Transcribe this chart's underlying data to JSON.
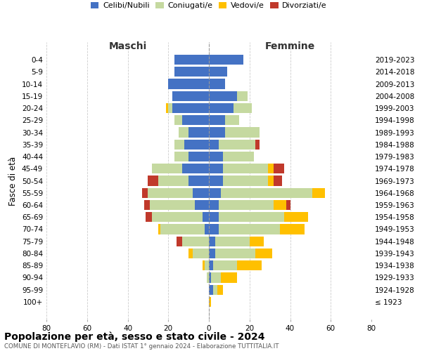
{
  "age_groups": [
    "0-4",
    "5-9",
    "10-14",
    "15-19",
    "20-24",
    "25-29",
    "30-34",
    "35-39",
    "40-44",
    "45-49",
    "50-54",
    "55-59",
    "60-64",
    "65-69",
    "70-74",
    "75-79",
    "80-84",
    "85-89",
    "90-94",
    "95-99",
    "100+"
  ],
  "birth_years": [
    "2019-2023",
    "2014-2018",
    "2009-2013",
    "2004-2008",
    "1999-2003",
    "1994-1998",
    "1989-1993",
    "1984-1988",
    "1979-1983",
    "1974-1978",
    "1969-1973",
    "1964-1968",
    "1959-1963",
    "1954-1958",
    "1949-1953",
    "1944-1948",
    "1939-1943",
    "1934-1938",
    "1929-1933",
    "1924-1928",
    "≤ 1923"
  ],
  "male": {
    "celibe": [
      17,
      17,
      20,
      18,
      18,
      13,
      10,
      12,
      10,
      13,
      10,
      8,
      7,
      3,
      2,
      0,
      0,
      0,
      0,
      0,
      0
    ],
    "coniugato": [
      0,
      0,
      0,
      0,
      2,
      4,
      5,
      5,
      7,
      15,
      15,
      22,
      22,
      25,
      22,
      13,
      8,
      2,
      1,
      0,
      0
    ],
    "vedovo": [
      0,
      0,
      0,
      0,
      1,
      0,
      0,
      0,
      0,
      0,
      0,
      0,
      0,
      0,
      1,
      0,
      2,
      1,
      0,
      0,
      0
    ],
    "divorziato": [
      0,
      0,
      0,
      0,
      0,
      0,
      0,
      0,
      0,
      0,
      5,
      3,
      3,
      3,
      0,
      3,
      0,
      0,
      0,
      0,
      0
    ]
  },
  "female": {
    "nubile": [
      17,
      9,
      8,
      14,
      12,
      8,
      8,
      5,
      7,
      7,
      7,
      6,
      5,
      5,
      5,
      3,
      3,
      2,
      1,
      2,
      0
    ],
    "coniugata": [
      0,
      0,
      0,
      5,
      9,
      7,
      17,
      18,
      15,
      22,
      22,
      45,
      27,
      32,
      30,
      17,
      20,
      12,
      5,
      2,
      0
    ],
    "vedova": [
      0,
      0,
      0,
      0,
      0,
      0,
      0,
      0,
      0,
      3,
      3,
      6,
      6,
      12,
      12,
      7,
      8,
      12,
      8,
      3,
      1
    ],
    "divorziata": [
      0,
      0,
      0,
      0,
      0,
      0,
      0,
      2,
      0,
      5,
      4,
      0,
      2,
      0,
      0,
      0,
      0,
      0,
      0,
      0,
      0
    ]
  },
  "colors": {
    "celibe_nubile": "#4472c4",
    "coniugato_coniugata": "#c5d9a0",
    "vedovo_vedova": "#ffc000",
    "divorziato_divorziata": "#c0392b"
  },
  "xlim": 80,
  "title": "Popolazione per età, sesso e stato civile - 2024",
  "subtitle": "COMUNE DI MONTEFLAVIO (RM) - Dati ISTAT 1° gennaio 2024 - Elaborazione TUTTITALIA.IT",
  "ylabel_left": "Fasce di età",
  "xlabel_maschi": "Maschi",
  "xlabel_femmine": "Femmine",
  "legend_labels": [
    "Celibi/Nubili",
    "Coniugati/e",
    "Vedovi/e",
    "Divorziati/e"
  ]
}
